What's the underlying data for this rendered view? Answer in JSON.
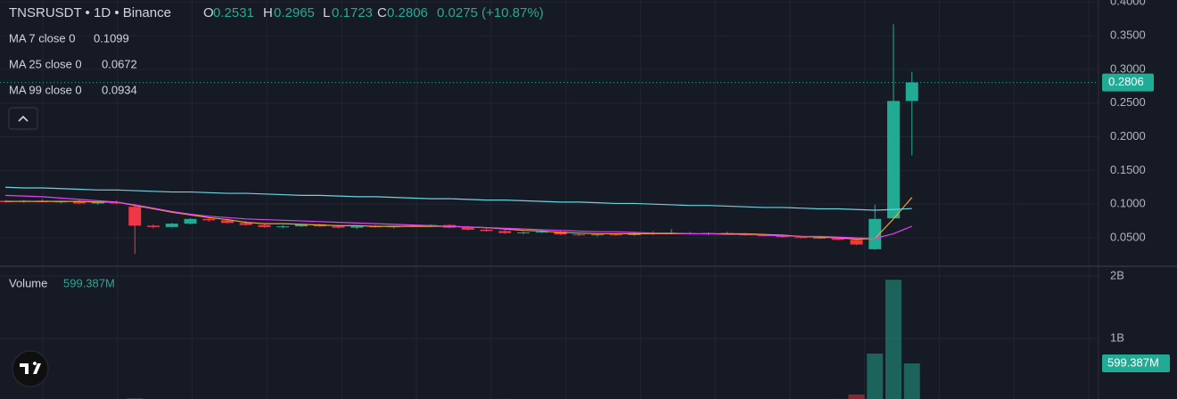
{
  "chart_data": {
    "type": "candlestick",
    "title": "TNSRUSDT • 1D • Binance",
    "ohlc_labels": [
      "O",
      "H",
      "L",
      "C"
    ],
    "change_label": "0.0275 (+10.87%)",
    "categories": [
      null,
      null,
      null,
      null,
      null,
      null,
      null,
      null,
      null,
      null,
      null,
      null,
      null,
      null,
      null,
      null,
      null,
      null,
      null,
      null,
      null,
      null,
      null,
      null,
      null,
      null,
      null,
      null,
      null,
      null,
      null,
      null,
      null,
      null,
      null,
      null,
      null,
      null,
      null,
      null,
      null,
      null,
      null,
      null,
      null,
      null,
      null,
      null,
      null,
      null
    ],
    "open": [
      0.105,
      0.104,
      0.105,
      0.103,
      0.104,
      0.101,
      0.103,
      0.096,
      0.068,
      0.066,
      0.071,
      0.078,
      0.076,
      0.072,
      0.069,
      0.066,
      0.067,
      0.07,
      0.067,
      0.065,
      0.067,
      0.066,
      0.067,
      0.068,
      0.069,
      0.065,
      0.062,
      0.06,
      0.057,
      0.058,
      0.059,
      0.055,
      0.054,
      0.055,
      0.054,
      0.057,
      0.056,
      0.057,
      0.056,
      0.057,
      0.055,
      0.054,
      0.053,
      0.051,
      0.05,
      0.049,
      0.047,
      0.033,
      0.079,
      0.2531
    ],
    "high": [
      0.106,
      0.106,
      0.107,
      0.105,
      0.106,
      0.104,
      0.105,
      0.099,
      0.07,
      0.072,
      0.079,
      0.08,
      0.078,
      0.075,
      0.071,
      0.069,
      0.071,
      0.071,
      0.069,
      0.068,
      0.069,
      0.068,
      0.069,
      0.07,
      0.07,
      0.067,
      0.064,
      0.062,
      0.059,
      0.061,
      0.06,
      0.057,
      0.056,
      0.057,
      0.058,
      0.06,
      0.063,
      0.059,
      0.058,
      0.059,
      0.057,
      0.056,
      0.055,
      0.053,
      0.052,
      0.051,
      0.048,
      0.099,
      0.367,
      0.2965
    ],
    "low": [
      0.102,
      0.102,
      0.103,
      0.101,
      0.1,
      0.099,
      0.1,
      0.026,
      0.064,
      0.065,
      0.07,
      0.074,
      0.071,
      0.068,
      0.065,
      0.064,
      0.066,
      0.066,
      0.064,
      0.063,
      0.065,
      0.064,
      0.066,
      0.066,
      0.064,
      0.061,
      0.059,
      0.056,
      0.055,
      0.057,
      0.054,
      0.053,
      0.052,
      0.053,
      0.053,
      0.054,
      0.055,
      0.055,
      0.054,
      0.055,
      0.053,
      0.052,
      0.05,
      0.049,
      0.048,
      0.046,
      0.039,
      0.032,
      0.078,
      0.1723
    ],
    "close": [
      0.103,
      0.105,
      0.103,
      0.104,
      0.101,
      0.103,
      0.101,
      0.068,
      0.066,
      0.071,
      0.078,
      0.076,
      0.072,
      0.069,
      0.066,
      0.067,
      0.07,
      0.067,
      0.065,
      0.067,
      0.066,
      0.067,
      0.068,
      0.069,
      0.065,
      0.062,
      0.06,
      0.057,
      0.058,
      0.059,
      0.055,
      0.054,
      0.055,
      0.054,
      0.057,
      0.056,
      0.057,
      0.056,
      0.057,
      0.055,
      0.054,
      0.053,
      0.051,
      0.05,
      0.049,
      0.047,
      0.04,
      0.078,
      0.2531,
      0.2806
    ],
    "up_color": "#22ab94",
    "down_color": "#f23645",
    "ylim": [
      0.009,
      0.403
    ],
    "yticks": [
      {
        "value": 0.4,
        "label": "0.4000"
      },
      {
        "value": 0.35,
        "label": "0.3500"
      },
      {
        "value": 0.3,
        "label": "0.3000"
      },
      {
        "value": 0.25,
        "label": "0.2500"
      },
      {
        "value": 0.2,
        "label": "0.2000"
      },
      {
        "value": 0.15,
        "label": "0.1500"
      },
      {
        "value": 0.1,
        "label": "0.1000"
      },
      {
        "value": 0.05,
        "label": "0.0500"
      }
    ],
    "grid": true,
    "moving_averages": [
      {
        "name": "MA 7 close 0",
        "color": "#f0a030",
        "values": [
          0.104,
          0.104,
          0.104,
          0.104,
          0.104,
          0.103,
          0.103,
          0.098,
          0.093,
          0.088,
          0.084,
          0.08,
          0.077,
          0.073,
          0.071,
          0.071,
          0.07,
          0.069,
          0.068,
          0.068,
          0.067,
          0.067,
          0.067,
          0.067,
          0.067,
          0.066,
          0.065,
          0.063,
          0.061,
          0.06,
          0.058,
          0.057,
          0.056,
          0.056,
          0.056,
          0.056,
          0.056,
          0.056,
          0.056,
          0.056,
          0.056,
          0.055,
          0.054,
          0.052,
          0.051,
          0.05,
          0.048,
          0.049,
          0.078,
          0.1099
        ]
      },
      {
        "name": "MA 25 close 0",
        "color": "#e040fb",
        "values": [
          0.113,
          0.112,
          0.111,
          0.109,
          0.107,
          0.105,
          0.103,
          0.099,
          0.094,
          0.089,
          0.085,
          0.082,
          0.08,
          0.078,
          0.077,
          0.076,
          0.075,
          0.074,
          0.073,
          0.072,
          0.071,
          0.07,
          0.069,
          0.068,
          0.067,
          0.066,
          0.065,
          0.064,
          0.063,
          0.062,
          0.061,
          0.06,
          0.059,
          0.059,
          0.058,
          0.057,
          0.057,
          0.056,
          0.056,
          0.055,
          0.055,
          0.054,
          0.053,
          0.052,
          0.052,
          0.051,
          0.05,
          0.049,
          0.056,
          0.0672
        ]
      },
      {
        "name": "MA 99 close 0",
        "color": "#6ad3e0",
        "values": [
          0.125,
          0.124,
          0.124,
          0.123,
          0.122,
          0.121,
          0.121,
          0.12,
          0.119,
          0.118,
          0.118,
          0.117,
          0.116,
          0.116,
          0.115,
          0.114,
          0.113,
          0.113,
          0.112,
          0.111,
          0.111,
          0.11,
          0.109,
          0.108,
          0.108,
          0.107,
          0.106,
          0.106,
          0.105,
          0.104,
          0.103,
          0.103,
          0.102,
          0.101,
          0.101,
          0.1,
          0.099,
          0.098,
          0.098,
          0.097,
          0.096,
          0.095,
          0.095,
          0.094,
          0.093,
          0.093,
          0.092,
          0.091,
          0.092,
          0.0934
        ]
      }
    ],
    "volume": {
      "title": "Volume",
      "value_label": "599.387M",
      "values": [
        20000000,
        18000000,
        22000000,
        17000000,
        21000000,
        16000000,
        19000000,
        40000000,
        22000000,
        18000000,
        20000000,
        17000000,
        19000000,
        16000000,
        18000000,
        15000000,
        17000000,
        16000000,
        18000000,
        15000000,
        16000000,
        17000000,
        15000000,
        16000000,
        18000000,
        17000000,
        19000000,
        30000000,
        16000000,
        15000000,
        18000000,
        16000000,
        15000000,
        17000000,
        16000000,
        18000000,
        20000000,
        16000000,
        15000000,
        17000000,
        16000000,
        18000000,
        19000000,
        17000000,
        18000000,
        30000000,
        100000000,
        757000000,
        1940000000,
        599387000
      ],
      "ylim": [
        0,
        2143000000
      ],
      "yticks": [
        {
          "value": 2000000000,
          "label": "2B"
        },
        {
          "value": 1000000000,
          "label": "1B"
        }
      ]
    }
  }
}
